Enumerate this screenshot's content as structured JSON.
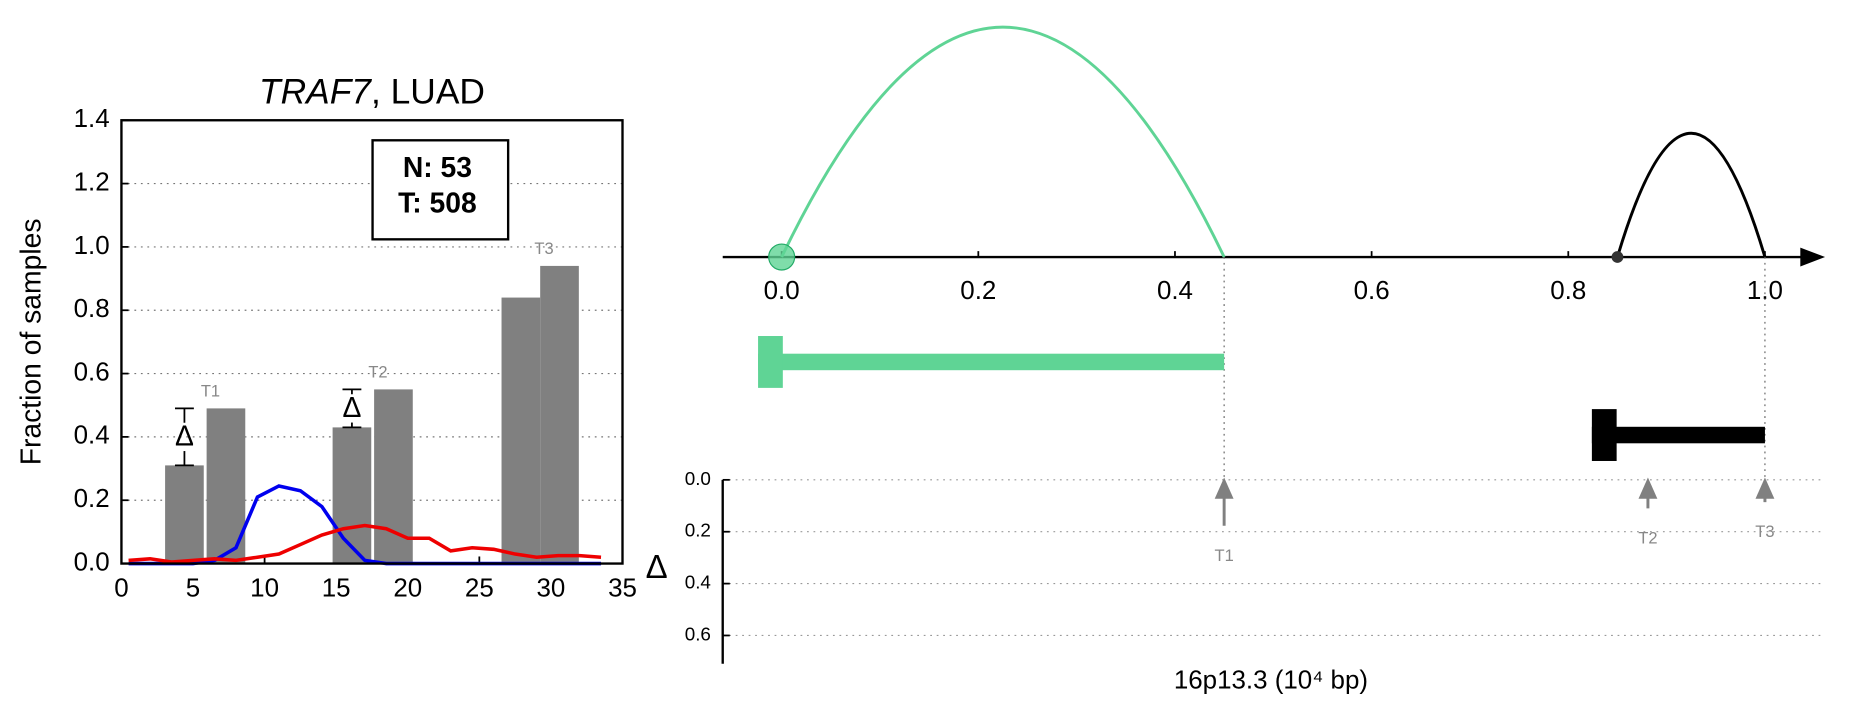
{
  "chart_data": [
    {
      "type": "bar_line",
      "title_parts": [
        "TRAF7",
        ", LUAD"
      ],
      "ylabel": "Fraction of samples",
      "xlim": [
        0,
        35
      ],
      "ylim": [
        0,
        1.4
      ],
      "xticks": [
        0,
        5,
        10,
        15,
        20,
        25,
        30,
        35
      ],
      "yticks": [
        {
          "value": 0,
          "label": "0.0"
        },
        0.2,
        0.4,
        0.6,
        0.8,
        {
          "value": 1,
          "label": "1.0"
        },
        1.2,
        1.4
      ],
      "grid": true,
      "bars": {
        "color": "#808080",
        "x": [
          4.4,
          7.3,
          16.1,
          19.0,
          27.9,
          30.6
        ],
        "values": [
          0.31,
          0.49,
          0.43,
          0.55,
          0.84,
          0.94
        ],
        "labels": [
          null,
          "T1",
          null,
          "T2",
          null,
          "T3"
        ]
      },
      "delta_labels": [
        "Δ",
        "Δ",
        null
      ],
      "series": [
        {
          "color": "#0000ee",
          "x": [
            0.5,
            2,
            3.5,
            5,
            6.5,
            8,
            9.5,
            11,
            12.5,
            14,
            15.5,
            17,
            18.5,
            20,
            21.5,
            23,
            24.5,
            26,
            27.5,
            29,
            30.5,
            32,
            33.5
          ],
          "values": [
            0,
            0,
            0,
            0,
            0.01,
            0.05,
            0.21,
            0.245,
            0.23,
            0.18,
            0.08,
            0.01,
            0,
            0,
            0,
            0,
            0,
            0,
            0,
            0,
            0,
            0,
            0
          ]
        },
        {
          "color": "#ee0000",
          "x": [
            0.5,
            2,
            3.5,
            5,
            6.5,
            8,
            9.5,
            11,
            12.5,
            14,
            15.5,
            17,
            18.5,
            20,
            21.5,
            23,
            24.5,
            26,
            27.5,
            29,
            30.5,
            32,
            33.5
          ],
          "values": [
            0.01,
            0.015,
            0.005,
            0.01,
            0.015,
            0.01,
            0.02,
            0.03,
            0.06,
            0.09,
            0.11,
            0.12,
            0.11,
            0.08,
            0.08,
            0.04,
            0.05,
            0.045,
            0.03,
            0.02,
            0.025,
            0.025,
            0.02
          ]
        }
      ],
      "box_lines": [
        "N: 53",
        "T: 508"
      ]
    },
    {
      "type": "arc_diagram",
      "xlim": [
        0,
        1
      ],
      "xticks": [
        {
          "value": 0,
          "label": "0.0"
        },
        0.2,
        0.4,
        0.6,
        0.8,
        {
          "value": 1,
          "label": "1.0"
        }
      ],
      "arcs": [
        {
          "start": 0,
          "end": 0.45,
          "color": "#5fd495"
        },
        {
          "start": 0.85,
          "end": 1,
          "color": "#000000"
        }
      ],
      "genes": [
        {
          "start": -0.024,
          "end": 0.45,
          "color": "#5fd495"
        },
        {
          "start": 0.824,
          "end": 1,
          "color": "#000000"
        }
      ],
      "delta_ylim": [
        0,
        0.6
      ],
      "delta_yticks": [
        {
          "value": 0,
          "label": "0.0"
        },
        0.2,
        0.4,
        0.6
      ],
      "delta_ylabel": "Δ",
      "xlabel": "16p13.3 (10⁴ bp)",
      "arrows": {
        "color": "#808080",
        "x": [
          0.45,
          0.881,
          1
        ],
        "values": [
          0.177,
          0.11,
          0.086
        ],
        "labels": [
          "T1",
          "T2",
          "T3"
        ]
      }
    }
  ]
}
